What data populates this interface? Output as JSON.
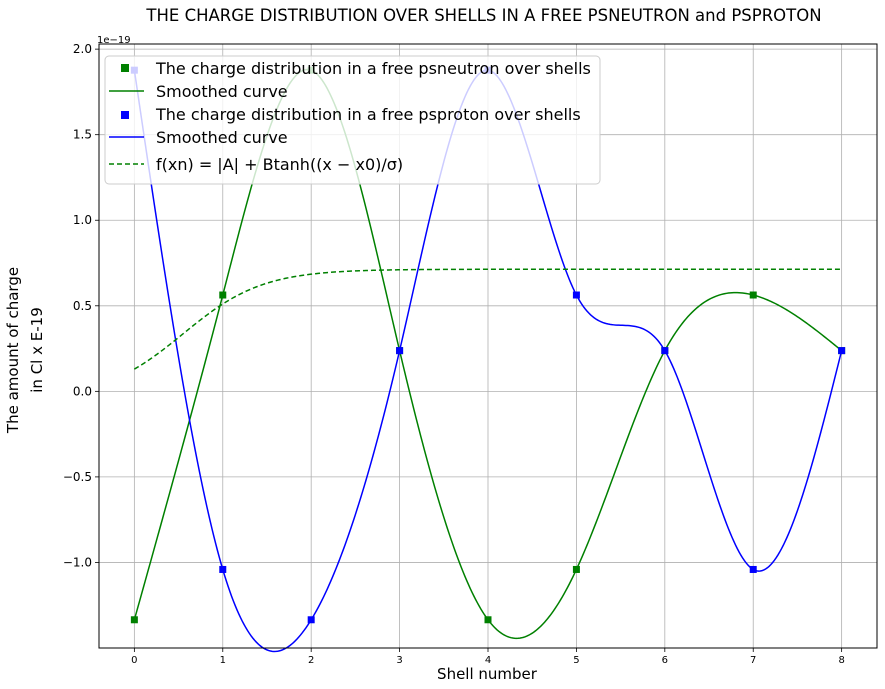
{
  "chart_data": {
    "type": "line",
    "title": "THE CHARGE DISTRIBUTION OVER SHELLS IN A FREE PSNEUTRON and PSPROTON",
    "xlabel": "Shell number",
    "ylabel_line1": "The amount of charge",
    "ylabel_line2": "in Cl x E-19",
    "y_offset_label": "1e−19",
    "xlim": [
      -0.4,
      8.4
    ],
    "ylim": [
      -1.5,
      2.03
    ],
    "x_ticks": [
      0,
      1,
      2,
      3,
      4,
      5,
      6,
      7,
      8
    ],
    "x_tick_labels": [
      "0",
      "1",
      "2",
      "3",
      "4",
      "5",
      "6",
      "7",
      "8"
    ],
    "y_ticks": [
      -1.0,
      -0.5,
      0.0,
      0.5,
      1.0,
      1.5,
      2.0
    ],
    "y_tick_labels": [
      "−1.0",
      "−0.5",
      "0.0",
      "0.5",
      "1.0",
      "1.5",
      "2.0"
    ],
    "grid": true,
    "legend_position": "top-left",
    "x": [
      0,
      1,
      2,
      3,
      4,
      5,
      6,
      7,
      8
    ],
    "series": [
      {
        "name": "The charge distribution in a free psneutron over shells",
        "kind": "markers",
        "color": "#008000",
        "values": [
          -1.335,
          0.563,
          1.877,
          0.238,
          -1.335,
          -1.041,
          0.238,
          0.563,
          0.238
        ]
      },
      {
        "name": "Smoothed curve",
        "kind": "smooth",
        "color": "#008000",
        "values": [
          -1.335,
          0.563,
          1.877,
          0.238,
          -1.335,
          -1.041,
          0.238,
          0.563,
          0.238
        ]
      },
      {
        "name": "The charge distribution in a free psproton over shells",
        "kind": "markers",
        "color": "#0000ff",
        "values": [
          1.877,
          -1.041,
          -1.335,
          0.238,
          1.877,
          0.563,
          0.238,
          -1.041,
          0.238
        ]
      },
      {
        "name": "Smoothed curve",
        "kind": "smooth",
        "color": "#0000ff",
        "values": [
          1.877,
          -1.041,
          -1.335,
          0.238,
          1.877,
          0.563,
          0.238,
          -1.041,
          0.238
        ]
      },
      {
        "name": "f(xn) = |A| + Btanh((x − x0)/σ)",
        "kind": "dashed",
        "color": "#008000",
        "A": 0.3359,
        "B": 0.3778,
        "x0": 0.55,
        "sigma": 0.9
      }
    ]
  }
}
